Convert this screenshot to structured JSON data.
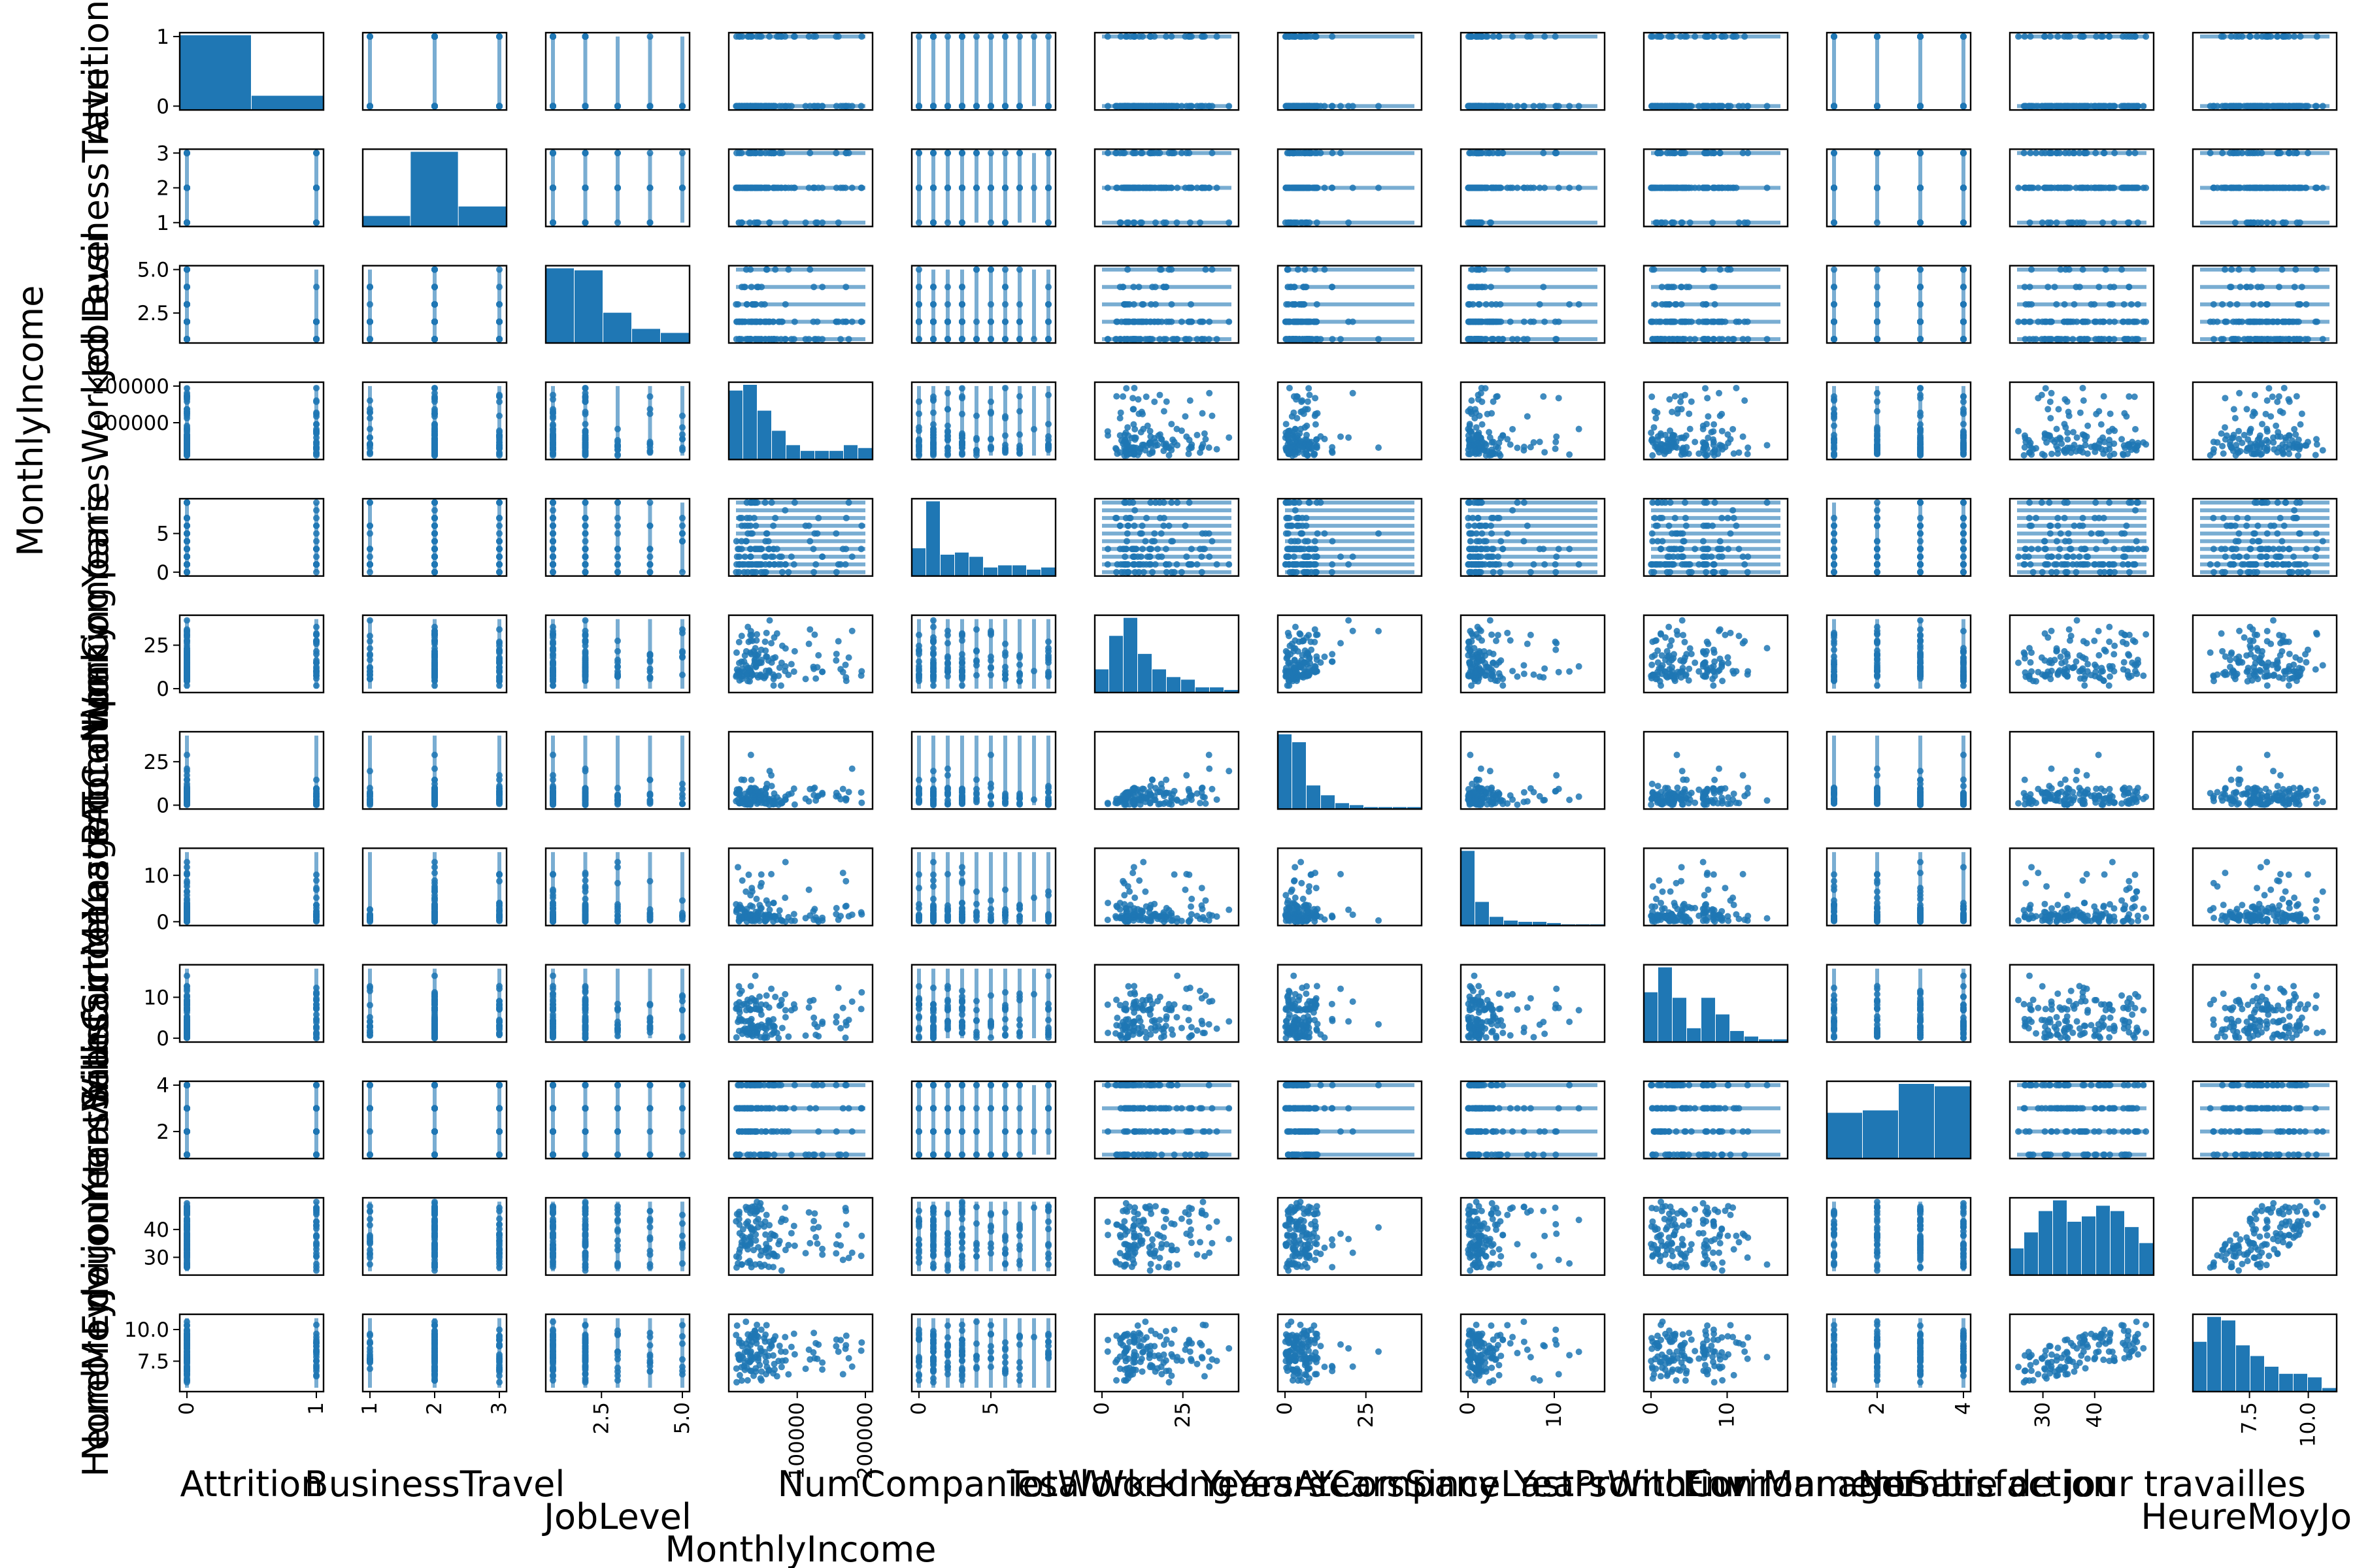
{
  "figure": {
    "marker_color": "#1f77b4",
    "axis_color": "#000000",
    "background": "#ffffff"
  },
  "chart_data": {
    "type": "scatter",
    "subtype": "scatter_matrix",
    "diagonal": "histogram",
    "variables": [
      {
        "name": "Attrition",
        "min": 0,
        "max": 1,
        "ticks": [
          0,
          1
        ],
        "tick_labels": [
          "0",
          "1"
        ],
        "kind": "discrete",
        "levels": [
          0,
          1
        ],
        "hist": [
          0.84,
          0.16
        ]
      },
      {
        "name": "BusinessTravel",
        "min": 1,
        "max": 3,
        "ticks": [
          1,
          2,
          3
        ],
        "tick_labels": [
          "1",
          "2",
          "3"
        ],
        "kind": "discrete",
        "levels": [
          1,
          2,
          3
        ],
        "hist": [
          0.1,
          0.71,
          0.19
        ]
      },
      {
        "name": "JobLevel",
        "min": 1,
        "max": 5,
        "ticks": [
          2.5,
          5.0
        ],
        "tick_labels": [
          "2.5",
          "5.0"
        ],
        "kind": "discrete",
        "levels": [
          1,
          2,
          3,
          4,
          5
        ],
        "hist": [
          0.37,
          0.36,
          0.15,
          0.07,
          0.05
        ]
      },
      {
        "name": "MonthlyIncome",
        "min": 10090,
        "max": 199990,
        "ticks": [
          100000,
          200000
        ],
        "tick_labels": [
          "100000",
          "200000"
        ],
        "kind": "continuous",
        "hist": [
          0.24,
          0.26,
          0.17,
          0.1,
          0.05,
          0.03,
          0.03,
          0.03,
          0.05,
          0.04
        ]
      },
      {
        "name": "NumCompaniesWorked",
        "min": 0,
        "max": 9,
        "ticks": [
          0,
          5
        ],
        "tick_labels": [
          "0",
          "5"
        ],
        "kind": "discrete",
        "levels": [
          0,
          1,
          2,
          3,
          4,
          5,
          6,
          7,
          8,
          9
        ],
        "hist": [
          0.13,
          0.35,
          0.1,
          0.11,
          0.09,
          0.04,
          0.05,
          0.05,
          0.03,
          0.04
        ]
      },
      {
        "name": "TotalWorkingYears",
        "min": 0,
        "max": 40,
        "ticks": [
          0,
          25
        ],
        "tick_labels": [
          "0",
          "25"
        ],
        "kind": "continuous",
        "hist": [
          0.09,
          0.22,
          0.29,
          0.15,
          0.09,
          0.06,
          0.05,
          0.02,
          0.02,
          0.01
        ]
      },
      {
        "name": "YearsAtCompany",
        "min": 0,
        "max": 40,
        "ticks": [
          0,
          25
        ],
        "tick_labels": [
          "0",
          "25"
        ],
        "kind": "continuous",
        "hist": [
          0.38,
          0.34,
          0.12,
          0.07,
          0.03,
          0.02,
          0.01,
          0.01,
          0.01,
          0.01
        ]
      },
      {
        "name": "YearsSinceLastPromotion",
        "min": 0,
        "max": 15,
        "ticks": [
          0,
          10
        ],
        "tick_labels": [
          "0",
          "10"
        ],
        "kind": "continuous",
        "hist": [
          0.6,
          0.19,
          0.07,
          0.04,
          0.03,
          0.03,
          0.02,
          0.01,
          0.01,
          0.01
        ]
      },
      {
        "name": "YearsWithCurrManager",
        "min": 0,
        "max": 17,
        "ticks": [
          0,
          10
        ],
        "tick_labels": [
          "0",
          "10"
        ],
        "kind": "continuous",
        "hist": [
          0.18,
          0.27,
          0.16,
          0.05,
          0.16,
          0.1,
          0.04,
          0.02,
          0.01,
          0.01
        ]
      },
      {
        "name": "EnvironmentSatisfaction",
        "min": 1,
        "max": 4,
        "ticks": [
          2,
          4
        ],
        "tick_labels": [
          "2",
          "4"
        ],
        "kind": "discrete",
        "levels": [
          1,
          2,
          3,
          4
        ],
        "hist": [
          0.19,
          0.2,
          0.31,
          0.3
        ]
      },
      {
        "name": "Nombre de jour travailles",
        "min": 25,
        "max": 50,
        "ticks": [
          30,
          40
        ],
        "tick_labels": [
          "30",
          "40"
        ],
        "kind": "continuous",
        "hist": [
          0.05,
          0.08,
          0.12,
          0.14,
          0.1,
          0.11,
          0.13,
          0.12,
          0.09,
          0.06
        ]
      },
      {
        "name": "HeureMoyJour",
        "min": 5.4,
        "max": 10.9,
        "ticks": [
          7.5,
          10.0
        ],
        "tick_labels": [
          "7.5",
          "10.0"
        ],
        "kind": "continuous",
        "hist": [
          0.14,
          0.21,
          0.2,
          0.13,
          0.1,
          0.07,
          0.05,
          0.05,
          0.04,
          0.01
        ]
      }
    ],
    "pairs_trend": [
      {
        "x": "TotalWorkingYears",
        "y": "YearsAtCompany",
        "relation": "y <= x"
      },
      {
        "x": "YearsAtCompany",
        "y": "TotalWorkingYears",
        "relation": "y >= x"
      },
      {
        "x": "HeureMoyJour",
        "y": "Nombre de jour travailles",
        "relation": "positive"
      },
      {
        "x": "Nombre de jour travailles",
        "y": "HeureMoyJour",
        "relation": "positive"
      }
    ]
  }
}
